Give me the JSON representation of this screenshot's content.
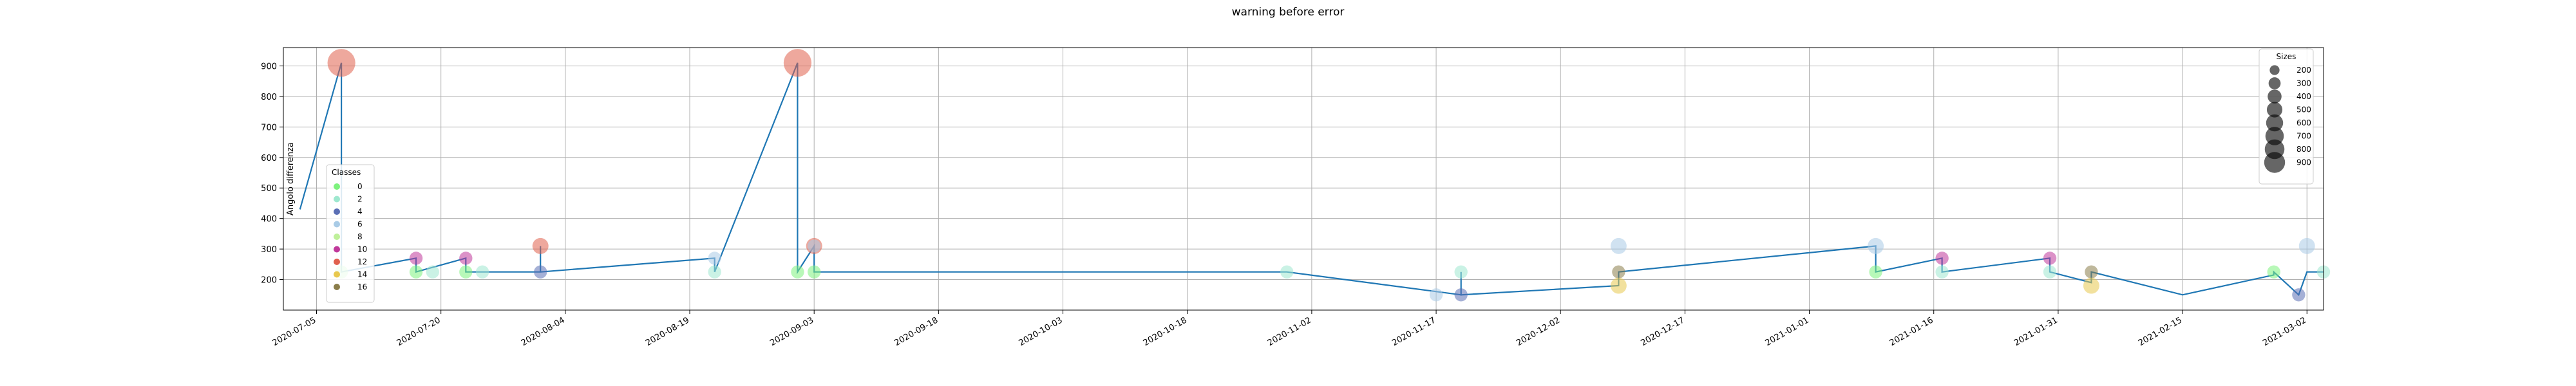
{
  "chart_data": {
    "type": "scatter",
    "title": "warning before error",
    "xlabel": "",
    "ylabel": "Angolo differenza",
    "x_tick_labels": [
      "2020-07-05",
      "2020-07-20",
      "2020-08-04",
      "2020-08-19",
      "2020-09-03",
      "2020-09-18",
      "2020-10-03",
      "2020-10-18",
      "2020-11-02",
      "2020-11-17",
      "2020-12-02",
      "2020-12-17",
      "2021-01-01",
      "2021-01-16",
      "2021-01-31",
      "2021-02-15",
      "2021-03-02"
    ],
    "y_ticks": [
      200,
      300,
      400,
      500,
      600,
      700,
      800,
      900
    ],
    "xlim": [
      "2020-07-01",
      "2021-03-04"
    ],
    "ylim": [
      100,
      960
    ],
    "grid": true,
    "line_color": "#1f77b4",
    "line_series": [
      {
        "x": "2020-07-03",
        "y": 430
      },
      {
        "x": "2020-07-08",
        "y": 910
      },
      {
        "x": "2020-07-08",
        "y": 225
      },
      {
        "x": "2020-07-17",
        "y": 270
      },
      {
        "x": "2020-07-17",
        "y": 225
      },
      {
        "x": "2020-07-23",
        "y": 270
      },
      {
        "x": "2020-07-23",
        "y": 225
      },
      {
        "x": "2020-08-01",
        "y": 225
      },
      {
        "x": "2020-08-01",
        "y": 310
      },
      {
        "x": "2020-08-01",
        "y": 225
      },
      {
        "x": "2020-08-22",
        "y": 270
      },
      {
        "x": "2020-08-22",
        "y": 225
      },
      {
        "x": "2020-09-01",
        "y": 910
      },
      {
        "x": "2020-09-01",
        "y": 225
      },
      {
        "x": "2020-09-03",
        "y": 310
      },
      {
        "x": "2020-09-03",
        "y": 225
      },
      {
        "x": "2020-10-30",
        "y": 225
      },
      {
        "x": "2020-11-20",
        "y": 150
      },
      {
        "x": "2020-11-20",
        "y": 225
      },
      {
        "x": "2020-11-20",
        "y": 150
      },
      {
        "x": "2020-12-09",
        "y": 180
      },
      {
        "x": "2020-12-09",
        "y": 225
      },
      {
        "x": "2020-12-09",
        "y": 225
      },
      {
        "x": "2021-01-09",
        "y": 310
      },
      {
        "x": "2021-01-09",
        "y": 225
      },
      {
        "x": "2021-01-17",
        "y": 270
      },
      {
        "x": "2021-01-17",
        "y": 225
      },
      {
        "x": "2021-01-30",
        "y": 270
      },
      {
        "x": "2021-01-30",
        "y": 225
      },
      {
        "x": "2021-02-04",
        "y": 190
      },
      {
        "x": "2021-02-04",
        "y": 225
      },
      {
        "x": "2021-02-15",
        "y": 150
      },
      {
        "x": "2021-02-26",
        "y": 215
      },
      {
        "x": "2021-02-26",
        "y": 225
      },
      {
        "x": "2021-03-01",
        "y": 150
      },
      {
        "x": "2021-03-02",
        "y": 225
      },
      {
        "x": "2021-03-04",
        "y": 225
      }
    ],
    "points": [
      {
        "x": "2020-07-08",
        "y": 910,
        "size": 900,
        "class": 12
      },
      {
        "x": "2020-07-08",
        "y": 225,
        "size": 200,
        "class": 0
      },
      {
        "x": "2020-07-17",
        "y": 270,
        "size": 200,
        "class": 10
      },
      {
        "x": "2020-07-17",
        "y": 225,
        "size": 200,
        "class": 0
      },
      {
        "x": "2020-07-19",
        "y": 225,
        "size": 200,
        "class": 2
      },
      {
        "x": "2020-07-23",
        "y": 270,
        "size": 200,
        "class": 10
      },
      {
        "x": "2020-07-23",
        "y": 225,
        "size": 200,
        "class": 0
      },
      {
        "x": "2020-07-25",
        "y": 225,
        "size": 200,
        "class": 2
      },
      {
        "x": "2020-08-01",
        "y": 310,
        "size": 300,
        "class": 12
      },
      {
        "x": "2020-08-01",
        "y": 225,
        "size": 200,
        "class": 4
      },
      {
        "x": "2020-08-22",
        "y": 270,
        "size": 200,
        "class": 6
      },
      {
        "x": "2020-08-22",
        "y": 225,
        "size": 200,
        "class": 2
      },
      {
        "x": "2020-09-01",
        "y": 910,
        "size": 900,
        "class": 12
      },
      {
        "x": "2020-09-01",
        "y": 225,
        "size": 200,
        "class": 0
      },
      {
        "x": "2020-09-03",
        "y": 310,
        "size": 300,
        "class": 12
      },
      {
        "x": "2020-09-03",
        "y": 310,
        "size": 200,
        "class": 6
      },
      {
        "x": "2020-09-03",
        "y": 225,
        "size": 200,
        "class": 0
      },
      {
        "x": "2020-10-30",
        "y": 225,
        "size": 200,
        "class": 2
      },
      {
        "x": "2020-11-17",
        "y": 150,
        "size": 200,
        "class": 6
      },
      {
        "x": "2020-11-20",
        "y": 225,
        "size": 200,
        "class": 2
      },
      {
        "x": "2020-11-20",
        "y": 150,
        "size": 200,
        "class": 4
      },
      {
        "x": "2020-12-09",
        "y": 310,
        "size": 300,
        "class": 6
      },
      {
        "x": "2020-12-09",
        "y": 225,
        "size": 200,
        "class": 16
      },
      {
        "x": "2020-12-09",
        "y": 180,
        "size": 300,
        "class": 14
      },
      {
        "x": "2021-01-09",
        "y": 310,
        "size": 300,
        "class": 6
      },
      {
        "x": "2021-01-09",
        "y": 225,
        "size": 200,
        "class": 0
      },
      {
        "x": "2021-01-17",
        "y": 270,
        "size": 200,
        "class": 10
      },
      {
        "x": "2021-01-17",
        "y": 225,
        "size": 200,
        "class": 2
      },
      {
        "x": "2021-01-30",
        "y": 270,
        "size": 200,
        "class": 10
      },
      {
        "x": "2021-01-30",
        "y": 225,
        "size": 200,
        "class": 2
      },
      {
        "x": "2021-02-04",
        "y": 225,
        "size": 200,
        "class": 16
      },
      {
        "x": "2021-02-04",
        "y": 180,
        "size": 300,
        "class": 14
      },
      {
        "x": "2021-02-26",
        "y": 225,
        "size": 200,
        "class": 0
      },
      {
        "x": "2021-03-02",
        "y": 310,
        "size": 300,
        "class": 6
      },
      {
        "x": "2021-03-01",
        "y": 150,
        "size": 200,
        "class": 4
      },
      {
        "x": "2021-03-04",
        "y": 225,
        "size": 200,
        "class": 2
      }
    ],
    "legend_classes": {
      "title": "Classes",
      "placement": "left",
      "entries": [
        {
          "label": "0",
          "color": "#7df27d"
        },
        {
          "label": "2",
          "color": "#9ee8cf"
        },
        {
          "label": "4",
          "color": "#5b6fb5"
        },
        {
          "label": "6",
          "color": "#a9cbe6"
        },
        {
          "label": "8",
          "color": "#bff09a"
        },
        {
          "label": "10",
          "color": "#c0399b"
        },
        {
          "label": "12",
          "color": "#e0604d"
        },
        {
          "label": "14",
          "color": "#e8c84e"
        },
        {
          "label": "16",
          "color": "#8a7d4a"
        }
      ]
    },
    "legend_sizes": {
      "title": "Sizes",
      "placement": "top-right",
      "entries": [
        {
          "label": "200",
          "value": 200
        },
        {
          "label": "300",
          "value": 300
        },
        {
          "label": "400",
          "value": 400
        },
        {
          "label": "500",
          "value": 500
        },
        {
          "label": "600",
          "value": 600
        },
        {
          "label": "700",
          "value": 700
        },
        {
          "label": "800",
          "value": 800
        },
        {
          "label": "900",
          "value": 900
        }
      ]
    }
  }
}
